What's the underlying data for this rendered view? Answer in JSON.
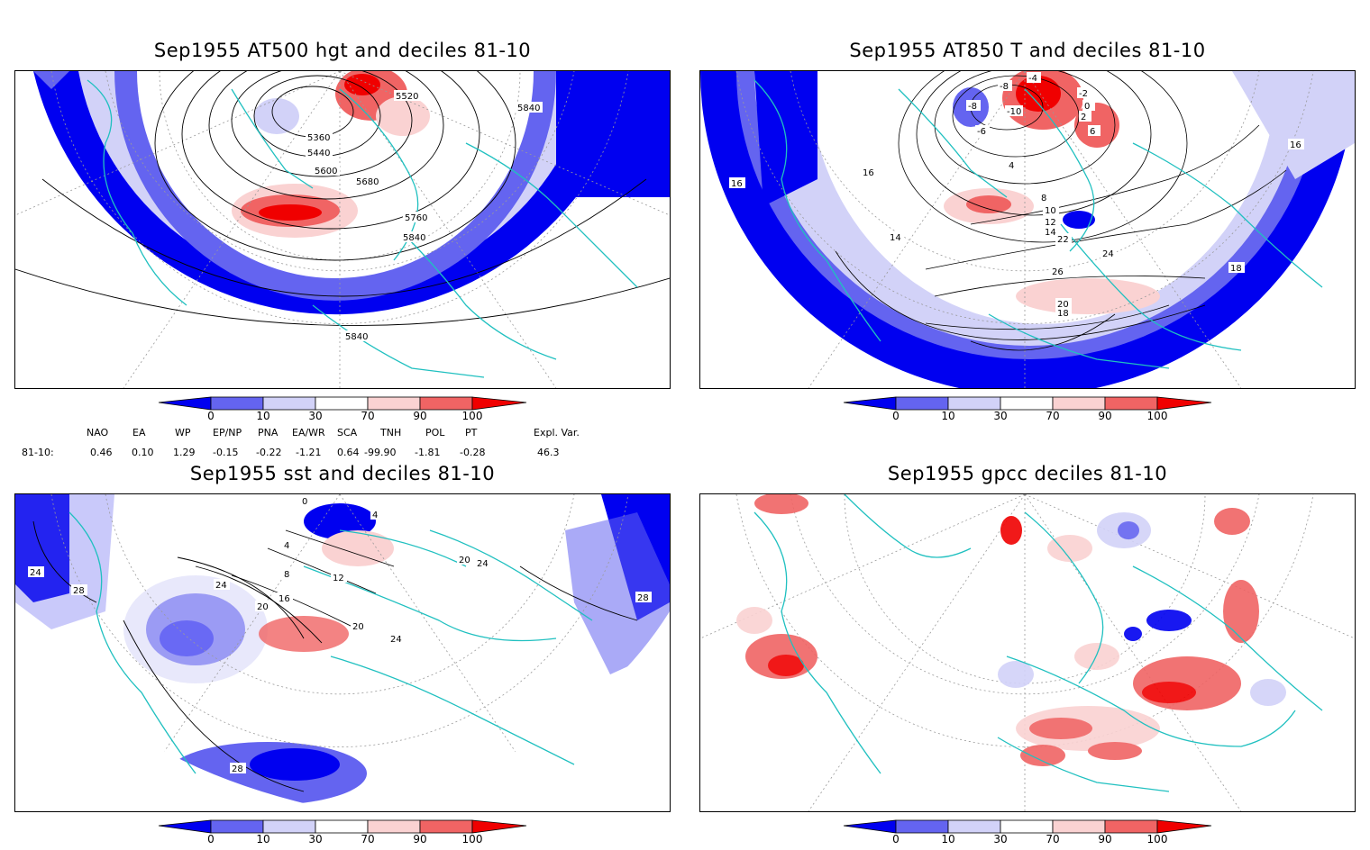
{
  "panels": [
    {
      "title": "Sep1955 AT500 hgt and deciles 81-10",
      "contour_labels": [
        "5520",
        "5840",
        "5360",
        "5440",
        "5600",
        "5680",
        "5760",
        "5840",
        "5840"
      ]
    },
    {
      "title": "Sep1955 AT850 T and deciles 81-10",
      "contour_labels": [
        "-4",
        "-8",
        "-10",
        "-8",
        "-6",
        "-2",
        "0",
        "2",
        "4",
        "6",
        "8",
        "10",
        "12",
        "14",
        "16",
        "18",
        "20",
        "22",
        "24",
        "26",
        "14",
        "16",
        "16",
        "16",
        "18"
      ]
    },
    {
      "title": "Sep1955 sst and deciles 81-10",
      "contour_labels": [
        "0",
        "4",
        "4",
        "8",
        "12",
        "16",
        "20",
        "24",
        "20",
        "24",
        "28",
        "24",
        "28",
        "28",
        "20",
        "24"
      ]
    },
    {
      "title": "Sep1955 gpcc deciles 81-10",
      "contour_labels": []
    }
  ],
  "colorbar": {
    "labels": [
      "0",
      "10",
      "30",
      "70",
      "90",
      "100"
    ],
    "colors": [
      "#0000f0",
      "#6464f0",
      "#d2d2f8",
      "#ffffff",
      "#fad2d2",
      "#f06464",
      "#f00000"
    ]
  },
  "indices": {
    "headers": [
      "NAO",
      "EA",
      "WP",
      "EP/NP",
      "PNA",
      "EA/WR",
      "SCA",
      "TNH",
      "POL",
      "PT",
      "Expl. Var."
    ],
    "row_label": "81-10:",
    "values": [
      "0.46",
      "0.10",
      "1.29",
      "-0.15",
      "-0.22",
      "-1.21",
      "0.64",
      "-99.90",
      "-1.81",
      "-0.28",
      "46.3"
    ]
  },
  "colors": {
    "coast": "#20c0c0",
    "contour": "#000000",
    "grid": "#9a9a9a"
  }
}
